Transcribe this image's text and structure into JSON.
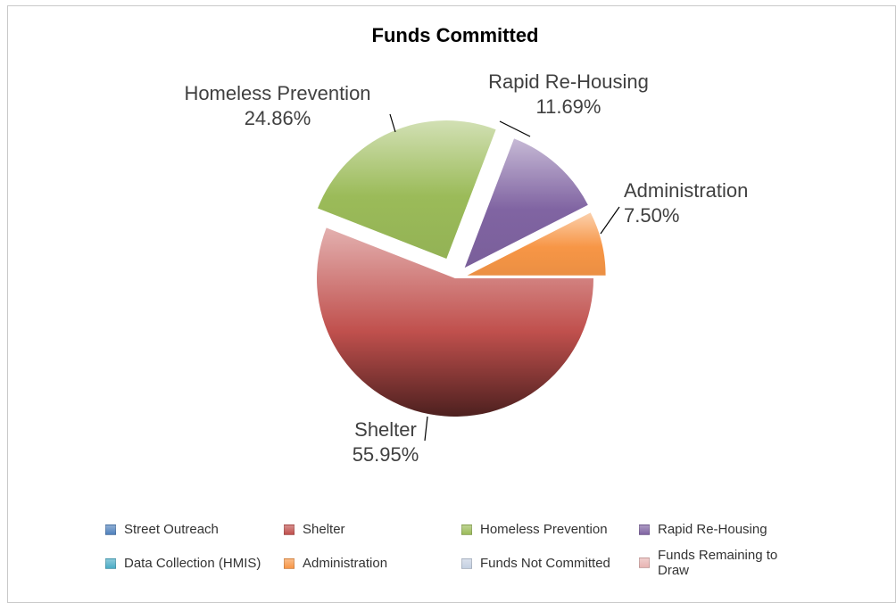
{
  "chart_data": {
    "type": "pie",
    "title": "Funds Committed",
    "slices": [
      {
        "name": "Shelter",
        "value": 55.95,
        "label": "55.95%",
        "color": "#c0504d"
      },
      {
        "name": "Homeless Prevention",
        "value": 24.86,
        "label": "24.86%",
        "color": "#9bbb59"
      },
      {
        "name": "Rapid Re-Housing",
        "value": 11.69,
        "label": "11.69%",
        "color": "#8064a2"
      },
      {
        "name": "Administration",
        "value": 7.5,
        "label": "7.50%",
        "color": "#f79646"
      }
    ],
    "legend_position": "bottom",
    "legend": [
      {
        "label": "Street Outreach",
        "color": "#4f81bd"
      },
      {
        "label": "Shelter",
        "color": "#c0504d"
      },
      {
        "label": "Homeless Prevention",
        "color": "#9bbb59"
      },
      {
        "label": "Rapid Re-Housing",
        "color": "#8064a2"
      },
      {
        "label": "Data Collection (HMIS)",
        "color": "#4bacc6"
      },
      {
        "label": "Administration",
        "color": "#f79646"
      },
      {
        "label": "Funds Not Committed",
        "color": "#c4d0e2"
      },
      {
        "label": "Funds Remaining to Draw",
        "color": "#e8b4b2"
      }
    ]
  }
}
